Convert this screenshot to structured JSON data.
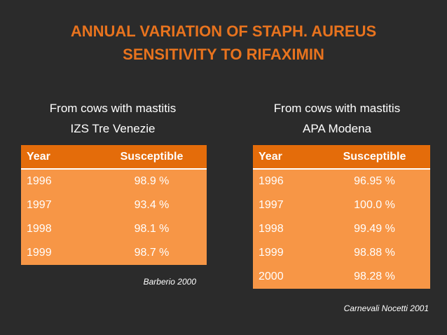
{
  "title": {
    "line1": "ANNUAL VARIATION OF STAPH. AUREUS",
    "line2": "SENSITIVITY TO RIFAXIMIN"
  },
  "left": {
    "heading_line1": "From cows with mastitis",
    "heading_line2": "IZS Tre Venezie",
    "headers": {
      "year": "Year",
      "susceptible": "Susceptible"
    },
    "rows": [
      {
        "year": "1996",
        "value": "98.9 %"
      },
      {
        "year": "1997",
        "value": "93.4 %"
      },
      {
        "year": "1998",
        "value": "98.1 %"
      },
      {
        "year": "1999",
        "value": "98.7 %"
      }
    ],
    "citation": "Barberio 2000"
  },
  "right": {
    "heading_line1": "From cows with mastitis",
    "heading_line2": "APA Modena",
    "headers": {
      "year": "Year",
      "susceptible": "Susceptible"
    },
    "rows": [
      {
        "year": "1996",
        "value": "96.95 %"
      },
      {
        "year": "1997",
        "value": "100.0 %"
      },
      {
        "year": "1998",
        "value": "99.49 %"
      },
      {
        "year": "1999",
        "value": "98.88 %"
      },
      {
        "year": "2000",
        "value": "98.28 %"
      }
    ],
    "citation": "Carnevali Nocetti 2001"
  },
  "colors": {
    "background": "#2b2b2b",
    "title": "#e8731e",
    "header_fill": "#e46c0a",
    "row_fill": "#f79646",
    "text": "#ffffff"
  }
}
